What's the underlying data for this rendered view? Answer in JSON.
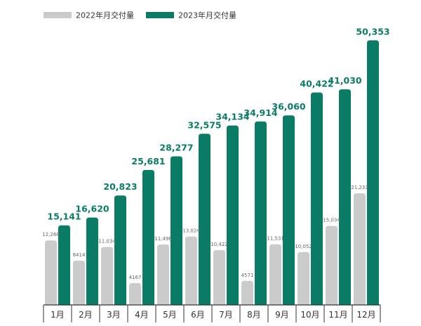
{
  "chart_data": {
    "type": "bar",
    "categories": [
      "1月",
      "2月",
      "3月",
      "4月",
      "5月",
      "6月",
      "7月",
      "8月",
      "9月",
      "10月",
      "11月",
      "12月"
    ],
    "series": [
      {
        "name": "2022年月交付量",
        "values": [
          12268,
          8414,
          11034,
          4167,
          11496,
          13024,
          10422,
          4571,
          11531,
          10052,
          15034,
          21233
        ],
        "labels": [
          "12,268",
          "8414",
          "11,034",
          "4167",
          "11,496",
          "13,024",
          "10,422",
          "4571",
          "11,531",
          "10,052",
          "15,034",
          "21,233"
        ],
        "color": "#cbcbcb"
      },
      {
        "name": "2023年月交付量",
        "values": [
          15141,
          16620,
          20823,
          25681,
          28277,
          32575,
          34134,
          34914,
          36060,
          40422,
          41030,
          50353
        ],
        "labels": [
          "15,141",
          "16,620",
          "20,823",
          "25,681",
          "28,277",
          "32,575",
          "34,134",
          "34,914",
          "36,060",
          "40,422",
          "41,030",
          "50,353"
        ],
        "color": "#0a7b65"
      }
    ],
    "ylim": [
      0,
      52000
    ],
    "legend_position": "top-left",
    "grid": false,
    "text_color": "#333333",
    "value_label_color_2023": "#0a7b65",
    "value_label_color_2022": "#666666",
    "axis_color": "#333333"
  }
}
